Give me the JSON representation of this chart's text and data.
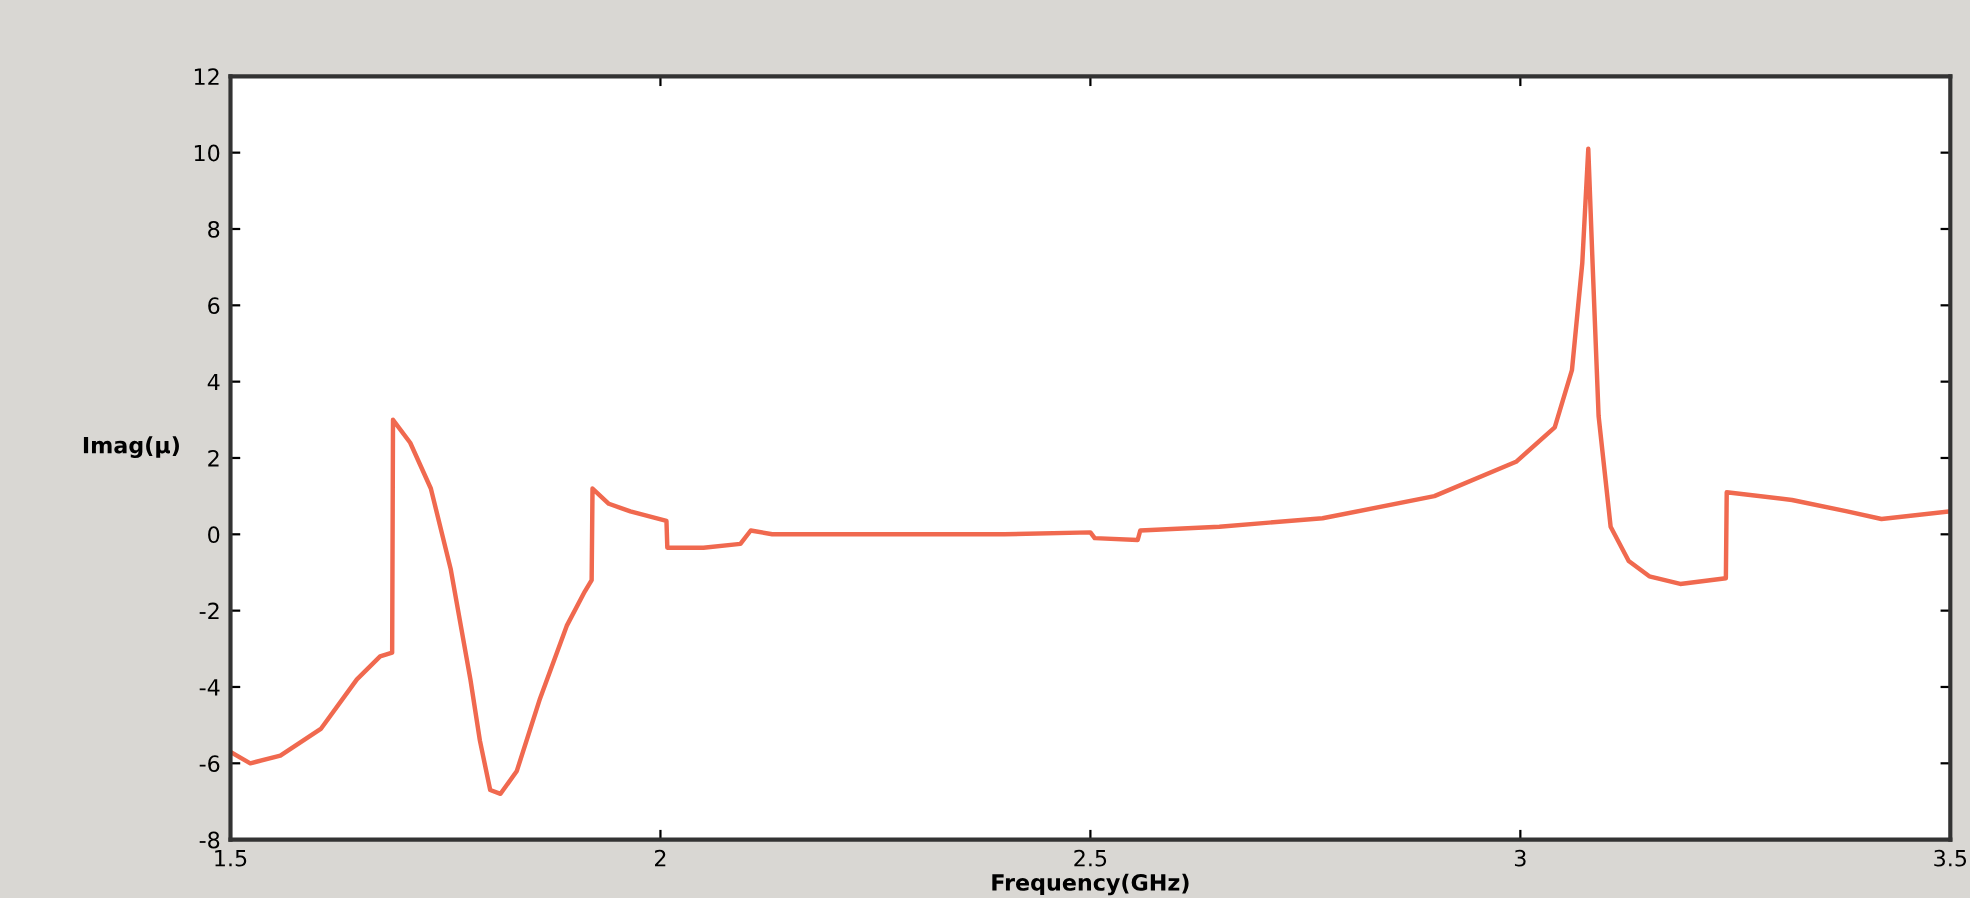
{
  "chart_data": {
    "type": "line",
    "xlabel": "Frequency(GHz)",
    "ylabel": "Imag(μ)",
    "xlim": [
      1.5,
      3.5
    ],
    "xticks": [
      1.5,
      2,
      2.5,
      3,
      3.5
    ],
    "ylim": [
      -8,
      12
    ],
    "yticks": [
      -8,
      -6,
      -4,
      -2,
      0,
      2,
      4,
      6,
      8,
      10,
      12
    ],
    "grid": false,
    "legend": false,
    "marker": "none",
    "line_style": "solid",
    "series": [
      {
        "color": "#f0694f",
        "x": [
          1.5,
          1.523,
          1.558,
          1.605,
          1.647,
          1.674,
          1.688,
          1.689,
          1.709,
          1.733,
          1.756,
          1.779,
          1.79,
          1.802,
          1.814,
          1.833,
          1.86,
          1.891,
          1.912,
          1.92,
          1.921,
          1.94,
          1.965,
          2.007,
          2.008,
          2.05,
          2.093,
          2.105,
          2.13,
          2.2,
          2.3,
          2.4,
          2.5,
          2.505,
          2.555,
          2.558,
          2.65,
          2.77,
          2.9,
          2.995,
          3.04,
          3.06,
          3.072,
          3.079,
          3.084,
          3.091,
          3.105,
          3.126,
          3.15,
          3.186,
          3.239,
          3.24,
          3.316,
          3.38,
          3.42,
          3.5
        ],
        "values": [
          -5.7,
          -6.0,
          -5.8,
          -5.1,
          -3.8,
          -3.2,
          -3.1,
          3.0,
          2.4,
          1.2,
          -0.9,
          -3.8,
          -5.4,
          -6.7,
          -6.8,
          -6.2,
          -4.3,
          -2.4,
          -1.5,
          -1.2,
          1.2,
          0.8,
          0.6,
          0.35,
          -0.35,
          -0.35,
          -0.25,
          0.1,
          0.0,
          0.0,
          0.0,
          0.0,
          0.05,
          -0.1,
          -0.15,
          0.1,
          0.2,
          0.42,
          1.0,
          1.9,
          2.8,
          4.3,
          7.1,
          10.1,
          7.1,
          3.1,
          0.2,
          -0.7,
          -1.1,
          -1.3,
          -1.15,
          1.1,
          0.9,
          0.6,
          0.4,
          0.6
        ]
      }
    ]
  }
}
